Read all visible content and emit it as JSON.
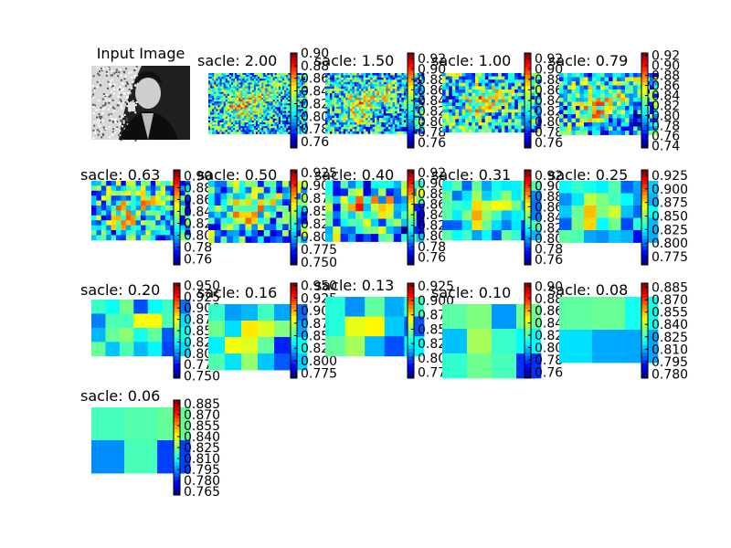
{
  "chart_data": [
    {
      "type": "image",
      "title": "Input Image",
      "colormap": "gray"
    },
    {
      "type": "heatmap",
      "title": "sacle: 2.00",
      "colormap": "jet",
      "grid": [
        52,
        32
      ],
      "ylim": [
        0.75,
        0.9
      ],
      "colorbar_ticks": [
        "0.90",
        "0.88",
        "0.86",
        "0.84",
        "0.82",
        "0.80",
        "0.78",
        "0.76"
      ]
    },
    {
      "type": "heatmap",
      "title": "sacle: 1.50",
      "colormap": "jet",
      "grid": [
        44,
        27
      ],
      "ylim": [
        0.75,
        0.93
      ],
      "colorbar_ticks": [
        "0.92",
        "0.90",
        "0.88",
        "0.86",
        "0.84",
        "0.82",
        "0.80",
        "0.78",
        "0.76"
      ]
    },
    {
      "type": "heatmap",
      "title": "sacle: 1.00",
      "colormap": "jet",
      "grid": [
        30,
        18
      ],
      "ylim": [
        0.75,
        0.93
      ],
      "colorbar_ticks": [
        "0.92",
        "0.90",
        "0.88",
        "0.86",
        "0.84",
        "0.82",
        "0.80",
        "0.78",
        "0.76"
      ]
    },
    {
      "type": "heatmap",
      "title": "sacle: 0.79",
      "colormap": "jet",
      "grid": [
        24,
        15
      ],
      "ylim": [
        0.735,
        0.925
      ],
      "colorbar_ticks": [
        "0.92",
        "0.90",
        "0.88",
        "0.86",
        "0.84",
        "0.82",
        "0.80",
        "0.78",
        "0.76",
        "0.74"
      ]
    },
    {
      "type": "heatmap",
      "title": "sacle: 0.63",
      "colormap": "jet",
      "grid": [
        20,
        12
      ],
      "ylim": [
        0.75,
        0.91
      ],
      "colorbar_ticks": [
        "0.90",
        "0.88",
        "0.86",
        "0.84",
        "0.82",
        "0.80",
        "0.78",
        "0.76"
      ]
    },
    {
      "type": "heatmap",
      "title": "sacle: 0.50",
      "colormap": "jet",
      "grid": [
        16,
        10
      ],
      "ylim": [
        0.745,
        0.93
      ],
      "colorbar_ticks": [
        "0.925",
        "0.900",
        "0.875",
        "0.850",
        "0.825",
        "0.800",
        "0.775",
        "0.750"
      ]
    },
    {
      "type": "heatmap",
      "title": "sacle: 0.40",
      "colormap": "jet",
      "grid": [
        13,
        8
      ],
      "ylim": [
        0.745,
        0.925
      ],
      "colorbar_ticks": [
        "0.92",
        "0.90",
        "0.88",
        "0.86",
        "0.84",
        "0.82",
        "0.80",
        "0.78",
        "0.76"
      ]
    },
    {
      "type": "heatmap",
      "title": "sacle: 0.31",
      "colormap": "jet",
      "grid": [
        10,
        6
      ],
      "ylim": [
        0.75,
        0.93
      ],
      "colorbar_ticks": [
        "0.92",
        "0.90",
        "0.88",
        "0.86",
        "0.84",
        "0.82",
        "0.80",
        "0.78",
        "0.76"
      ]
    },
    {
      "type": "heatmap",
      "title": "sacle: 0.25",
      "colormap": "jet",
      "grid": [
        8,
        5
      ],
      "ylim": [
        0.76,
        0.935
      ],
      "colorbar_ticks": [
        "0.925",
        "0.900",
        "0.875",
        "0.850",
        "0.825",
        "0.800",
        "0.775"
      ]
    },
    {
      "type": "heatmap",
      "title": "sacle: 0.20",
      "colormap": "jet",
      "grid": [
        7,
        4
      ],
      "ylim": [
        0.745,
        0.955
      ],
      "colorbar_ticks": [
        "0.950",
        "0.925",
        "0.900",
        "0.875",
        "0.850",
        "0.825",
        "0.800",
        "0.775",
        "0.750"
      ]
    },
    {
      "type": "heatmap",
      "title": "sacle: 0.16",
      "colormap": "jet",
      "grid": [
        6,
        4
      ],
      "ylim": [
        0.765,
        0.955
      ],
      "colorbar_ticks": [
        "0.950",
        "0.925",
        "0.900",
        "0.875",
        "0.850",
        "0.825",
        "0.800",
        "0.775"
      ]
    },
    {
      "type": "heatmap",
      "title": "sacle: 0.13",
      "colormap": "jet",
      "grid": [
        5,
        3
      ],
      "ylim": [
        0.765,
        0.93
      ],
      "colorbar_ticks": [
        "0.925",
        "0.900",
        "0.875",
        "0.850",
        "0.825",
        "0.800",
        "0.775"
      ]
    },
    {
      "type": "heatmap",
      "title": "sacle: 0.10",
      "colormap": "jet",
      "grid": [
        4,
        3
      ],
      "ylim": [
        0.75,
        0.905
      ],
      "colorbar_ticks": [
        "0.90",
        "0.88",
        "0.86",
        "0.84",
        "0.82",
        "0.80",
        "0.78",
        "0.76"
      ]
    },
    {
      "type": "heatmap",
      "title": "sacle: 0.08",
      "colormap": "jet",
      "grid": [
        3,
        2
      ],
      "ylim": [
        0.775,
        0.89
      ],
      "colorbar_ticks": [
        "0.885",
        "0.870",
        "0.855",
        "0.840",
        "0.825",
        "0.810",
        "0.795",
        "0.780"
      ]
    },
    {
      "type": "heatmap",
      "title": "sacle: 0.06",
      "colormap": "jet",
      "grid": [
        3,
        2
      ],
      "ylim": [
        0.76,
        0.89
      ],
      "colorbar_ticks": [
        "0.885",
        "0.870",
        "0.855",
        "0.840",
        "0.825",
        "0.810",
        "0.795",
        "0.780",
        "0.765"
      ]
    }
  ]
}
